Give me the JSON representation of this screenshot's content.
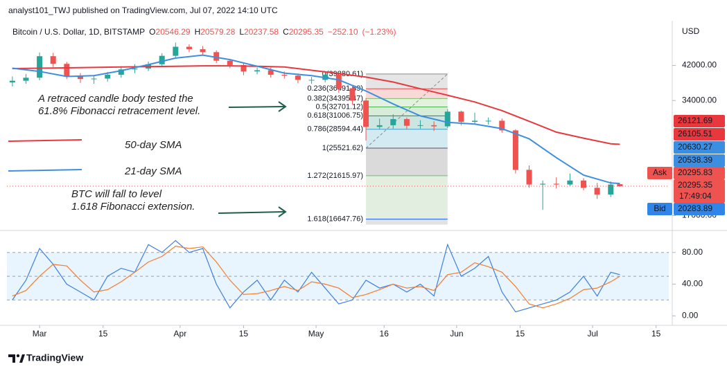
{
  "header": {
    "text": "analyst101_TWJ published on TradingView.com, Jul 07, 2022 14:10 UTC"
  },
  "footer": {
    "brand": "TradingView"
  },
  "chart_data": [
    {
      "type": "candlestick",
      "title": "Bitcoin / U.S. Dollar, 1D, BITSTAMP",
      "y_axis_label": "USD",
      "ohlc": {
        "keys": [
          "O",
          "H",
          "L",
          "C"
        ],
        "values": [
          20546.29,
          20579.28,
          20237.58,
          20295.35
        ],
        "change": {
          "value": -252.1,
          "label": "−252.10"
        },
        "change_pct": {
          "value": -1.23,
          "label": "(−1.23%)"
        }
      },
      "up_color": "#26a69a",
      "down_color": "#ef5350",
      "xlim": [
        52.8,
        198.8
      ],
      "ylim": [
        15740,
        54500
      ],
      "log_scale": true,
      "yticks": [
        {
          "value": 42000,
          "label": "42000.00"
        },
        {
          "value": 34000,
          "label": "34000.00"
        },
        {
          "value": 17000,
          "label": "17000.00"
        }
      ],
      "x": [
        54,
        57,
        60,
        63,
        66,
        69,
        72,
        75,
        78,
        81,
        84,
        87,
        90,
        93,
        96,
        99,
        102,
        105,
        108,
        111,
        114,
        117,
        120,
        123,
        126,
        129,
        132,
        135,
        138,
        141,
        144,
        147,
        150,
        153,
        156,
        159,
        162,
        165,
        168,
        171,
        174,
        177,
        180,
        183,
        186,
        188
      ],
      "open": [
        37900,
        38300,
        39000,
        44400,
        42400,
        39400,
        38700,
        38800,
        39700,
        41000,
        41200,
        42300,
        44500,
        47000,
        46300,
        45500,
        43200,
        42100,
        40500,
        40800,
        39700,
        39500,
        38500,
        38500,
        39700,
        36600,
        34000,
        29000,
        29300,
        30400,
        29200,
        29300,
        29100,
        31800,
        29900,
        30100,
        30100,
        28400,
        22400,
        20500,
        20600,
        20500,
        21000,
        20100,
        19300,
        20546.29
      ],
      "high": [
        39300,
        39900,
        45400,
        45300,
        42900,
        40100,
        39600,
        40400,
        41800,
        42300,
        43000,
        45200,
        48200,
        47700,
        47200,
        46000,
        43600,
        42600,
        41500,
        41400,
        40500,
        40000,
        39200,
        40000,
        40000,
        37000,
        34500,
        30500,
        31300,
        30700,
        30200,
        30000,
        32300,
        32000,
        31600,
        30700,
        30500,
        28600,
        23000,
        21000,
        21400,
        21900,
        21300,
        20700,
        20900,
        20579.28
      ],
      "low": [
        37000,
        37600,
        38400,
        41600,
        38700,
        37800,
        37600,
        38100,
        39000,
        40100,
        40600,
        41800,
        44100,
        45500,
        44800,
        42600,
        41300,
        39600,
        39800,
        39000,
        38800,
        37700,
        37600,
        37900,
        35600,
        33200,
        26700,
        28600,
        28700,
        28600,
        28700,
        28300,
        28800,
        29300,
        29500,
        29400,
        28000,
        21900,
        20100,
        17600,
        20000,
        20300,
        19800,
        18800,
        19000,
        20237.58
      ],
      "close": [
        38300,
        39000,
        44400,
        42400,
        39400,
        38700,
        38800,
        39700,
        41000,
        41200,
        42300,
        44500,
        47000,
        46300,
        45500,
        43200,
        42100,
        40500,
        40800,
        39700,
        39500,
        38500,
        38500,
        39700,
        36600,
        34000,
        29000,
        29300,
        30400,
        29200,
        29300,
        29100,
        31800,
        29900,
        30100,
        30100,
        28400,
        22400,
        20500,
        20600,
        20500,
        21000,
        20100,
        19300,
        20500,
        20295.35
      ],
      "series": [
        {
          "name": "50-day SMA",
          "color": "#e8383d",
          "x": [
            54,
            60,
            66,
            72,
            78,
            84,
            90,
            96,
            102,
            108,
            114,
            120,
            126,
            132,
            138,
            144,
            150,
            156,
            162,
            168,
            174,
            180,
            186,
            188
          ],
          "values": [
            41200,
            41300,
            41400,
            41500,
            41600,
            41700,
            41800,
            41900,
            41900,
            41800,
            41600,
            40800,
            40000,
            39150,
            38000,
            36500,
            35100,
            33700,
            32000,
            30000,
            28100,
            27100,
            26200,
            26121.69
          ]
        },
        {
          "name": "21-day SMA",
          "color": "#3c8fe0",
          "x": [
            54,
            60,
            66,
            72,
            78,
            84,
            90,
            96,
            102,
            108,
            114,
            120,
            126,
            132,
            138,
            144,
            150,
            156,
            162,
            168,
            174,
            180,
            186,
            188
          ],
          "values": [
            41300,
            40500,
            39300,
            39500,
            40700,
            42200,
            43900,
            44700,
            43500,
            41800,
            40100,
            39500,
            38500,
            36000,
            33300,
            31000,
            29800,
            29500,
            28700,
            27000,
            24100,
            21700,
            20700,
            20630.27
          ]
        }
      ],
      "fib": {
        "x": [
          132,
          150
        ],
        "levels": [
          {
            "value": 39880.61,
            "label": "0(39880.61)",
            "color": "#8a8a8a"
          },
          {
            "value": 36491.89,
            "label": "0.236(36491.89)",
            "color": "#e0504f"
          },
          {
            "value": 34395.47,
            "label": "0.382(34395.47)",
            "color": "#80bd6e"
          },
          {
            "value": 32701.12,
            "label": "0.5(32701.12)",
            "color": "#4caf50"
          },
          {
            "value": 31006.75,
            "label": "0.618(31006.75)",
            "color": "#138a75"
          },
          {
            "value": 28594.44,
            "label": "0.786(28594.44)",
            "color": "#3b9fc8"
          },
          {
            "value": 25521.62,
            "label": "1(25521.62)",
            "color": "#555555"
          },
          {
            "value": 21615.97,
            "label": "1.272(21615.97)",
            "color": "#7cb870"
          },
          {
            "value": 16647.76,
            "label": "1.618(16647.76)",
            "color": "#2962ff"
          }
        ]
      },
      "annotations": [
        "A retraced candle body tested the",
        "61.8% Fibonacci retracement level.",
        "BTC will fall to level",
        "1.618 Fibonacci extension."
      ],
      "price_tags": [
        {
          "value": 26121.69,
          "color": "#e8383d"
        },
        {
          "value": 26105.51,
          "color": "#e8383d"
        },
        {
          "value": 20630.27,
          "color": "#3c8fe0"
        },
        {
          "value": 20538.39,
          "color": "#3c8fe0"
        }
      ],
      "ask": {
        "name": "Ask",
        "value": 20295.83,
        "color": "#ef5350"
      },
      "last": {
        "value": 20295.35,
        "countdown": "17:49:04",
        "color": "#ef5350"
      },
      "bid": {
        "name": "Bid",
        "value": 20283.89,
        "color": "#2f86e8"
      }
    },
    {
      "type": "line",
      "xlim": [
        52.8,
        198.8
      ],
      "ylim": [
        -12,
        106
      ],
      "yticks": [
        {
          "value": 80,
          "label": "80.00"
        },
        {
          "value": 40,
          "label": "40.00"
        },
        {
          "value": 0,
          "label": "0.00"
        }
      ],
      "band": [
        20,
        80
      ],
      "midline": 50,
      "xticks": [
        {
          "value": 60,
          "label": "Mar"
        },
        {
          "value": 74,
          "label": "15"
        },
        {
          "value": 91,
          "label": "Apr"
        },
        {
          "value": 105,
          "label": "15"
        },
        {
          "value": 121,
          "label": "May"
        },
        {
          "value": 136,
          "label": "16"
        },
        {
          "value": 152,
          "label": "Jun"
        },
        {
          "value": 166,
          "label": "15"
        },
        {
          "value": 182,
          "label": "Jul"
        },
        {
          "value": 196,
          "label": "15"
        }
      ],
      "x": [
        54,
        57,
        60,
        63,
        66,
        69,
        72,
        75,
        78,
        81,
        84,
        87,
        90,
        93,
        96,
        99,
        102,
        105,
        108,
        111,
        114,
        117,
        120,
        123,
        126,
        129,
        132,
        135,
        138,
        141,
        144,
        147,
        150,
        153,
        156,
        159,
        162,
        165,
        168,
        171,
        174,
        177,
        180,
        183,
        186,
        188
      ],
      "series": [
        {
          "color": "#3d7fe0",
          "values": [
            20,
            45,
            85,
            65,
            40,
            30,
            20,
            50,
            60,
            55,
            90,
            80,
            95,
            80,
            85,
            40,
            10,
            30,
            45,
            20,
            45,
            30,
            55,
            35,
            15,
            20,
            45,
            35,
            40,
            30,
            40,
            25,
            90,
            50,
            60,
            75,
            30,
            5,
            10,
            15,
            20,
            30,
            50,
            25,
            55,
            52
          ]
        },
        {
          "color": "#f57c2a",
          "values": [
            25,
            32,
            50,
            65,
            63,
            45,
            30,
            33,
            43,
            55,
            68,
            75,
            88,
            85,
            87,
            68,
            45,
            27,
            28,
            32,
            37,
            32,
            43,
            40,
            35,
            23,
            27,
            33,
            40,
            35,
            37,
            32,
            52,
            55,
            67,
            62,
            55,
            37,
            15,
            10,
            15,
            22,
            33,
            35,
            43,
            50
          ]
        }
      ]
    }
  ]
}
